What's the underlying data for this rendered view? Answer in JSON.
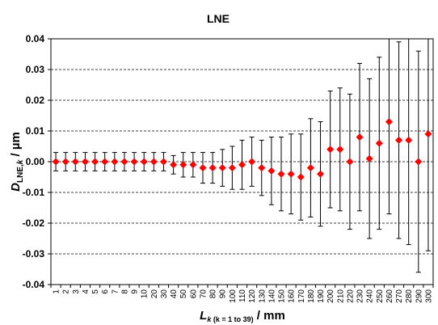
{
  "chart_data": {
    "type": "scatter",
    "title": "LNE",
    "ylabel": {
      "main": "D",
      "sub": "LNE,",
      "sub_italic": "k",
      "rest": " / µm"
    },
    "xlabel": {
      "main": "L",
      "sub_italic": "k",
      "sub_rest": " (k = 1 to 39)",
      "rest": " / mm"
    },
    "ylim": [
      -0.04,
      0.04
    ],
    "yticks": [
      "0.04",
      "0.03",
      "0.02",
      "0.01",
      "0.00",
      "-0.01",
      "-0.02",
      "-0.03",
      "-0.04"
    ],
    "ytick_values": [
      0.04,
      0.03,
      0.02,
      0.01,
      0.0,
      -0.01,
      -0.02,
      -0.03,
      -0.04
    ],
    "grid": "horizontal-dashed",
    "marker_color": "#ff0000",
    "categories": [
      "1",
      "2",
      "3",
      "4",
      "5",
      "6",
      "7",
      "8",
      "9",
      "10",
      "20",
      "30",
      "40",
      "50",
      "60",
      "70",
      "80",
      "90",
      "100",
      "110",
      "120",
      "130",
      "140",
      "150",
      "160",
      "170",
      "180",
      "190",
      "200",
      "210",
      "220",
      "230",
      "240",
      "250",
      "260",
      "270",
      "280",
      "290",
      "300"
    ],
    "values": [
      0.0,
      0.0,
      0.0,
      0.0,
      0.0,
      0.0,
      0.0,
      0.0,
      0.0,
      0.0,
      0.0,
      0.0,
      -0.001,
      -0.001,
      -0.001,
      -0.002,
      -0.002,
      -0.002,
      -0.002,
      -0.001,
      0.0,
      -0.002,
      -0.003,
      -0.004,
      -0.004,
      -0.005,
      -0.002,
      -0.004,
      0.004,
      0.004,
      0.0,
      0.008,
      0.001,
      0.006,
      0.013,
      0.007,
      0.007,
      0.0,
      0.009
    ],
    "error": [
      0.003,
      0.003,
      0.003,
      0.003,
      0.003,
      0.003,
      0.003,
      0.003,
      0.003,
      0.003,
      0.003,
      0.003,
      0.003,
      0.004,
      0.004,
      0.005,
      0.005,
      0.006,
      0.007,
      0.008,
      0.008,
      0.009,
      0.011,
      0.012,
      0.013,
      0.014,
      0.016,
      0.017,
      0.019,
      0.02,
      0.022,
      0.024,
      0.026,
      0.028,
      0.03,
      0.032,
      0.034,
      0.036,
      0.038
    ]
  }
}
